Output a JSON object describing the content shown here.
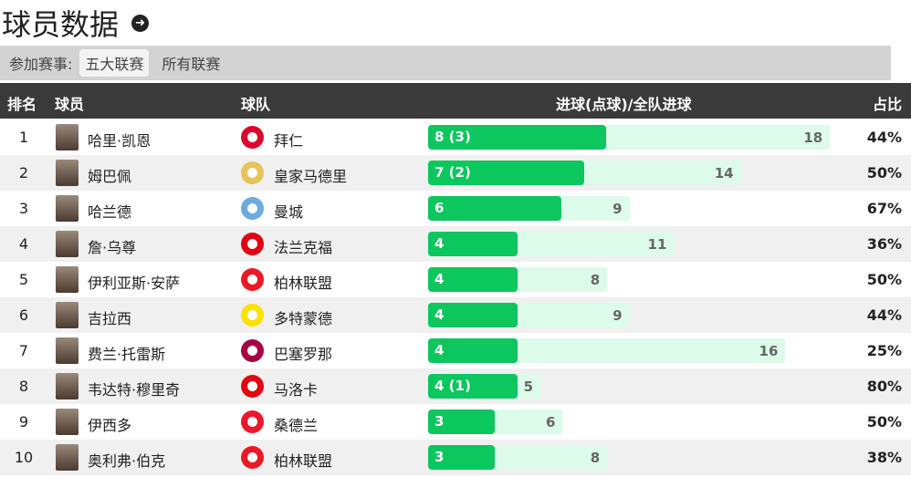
{
  "title": "球员数据",
  "filter": {
    "label": "参加赛事:",
    "options": [
      "五大联赛",
      "所有联赛"
    ],
    "active": "五大联赛"
  },
  "columns": {
    "rank": "排名",
    "player": "球员",
    "team": "球队",
    "goals": "进球(点球)/全队进球",
    "share": "占比"
  },
  "colors": {
    "bar": "#0cc65e",
    "bar_bg": "#dcfbea",
    "header": "#3a3a3a"
  },
  "rows": [
    {
      "rank": "1",
      "player": "哈里·凯恩",
      "team": "拜仁",
      "goals": 8,
      "goals_label": "8 (3)",
      "team_goals": 18,
      "share": "44%",
      "logo_color": "#dc052d"
    },
    {
      "rank": "2",
      "player": "姆巴佩",
      "team": "皇家马德里",
      "goals": 7,
      "goals_label": "7 (2)",
      "team_goals": 14,
      "share": "50%",
      "logo_color": "#e8c25a"
    },
    {
      "rank": "3",
      "player": "哈兰德",
      "team": "曼城",
      "goals": 6,
      "goals_label": "6",
      "team_goals": 9,
      "share": "67%",
      "logo_color": "#6cabdd"
    },
    {
      "rank": "4",
      "player": "詹·乌尊",
      "team": "法兰克福",
      "goals": 4,
      "goals_label": "4",
      "team_goals": 11,
      "share": "36%",
      "logo_color": "#e1000f"
    },
    {
      "rank": "5",
      "player": "伊利亚斯·安萨",
      "team": "柏林联盟",
      "goals": 4,
      "goals_label": "4",
      "team_goals": 8,
      "share": "50%",
      "logo_color": "#eb1923"
    },
    {
      "rank": "6",
      "player": "吉拉西",
      "team": "多特蒙德",
      "goals": 4,
      "goals_label": "4",
      "team_goals": 9,
      "share": "44%",
      "logo_color": "#fde100"
    },
    {
      "rank": "7",
      "player": "费兰·托雷斯",
      "team": "巴塞罗那",
      "goals": 4,
      "goals_label": "4",
      "team_goals": 16,
      "share": "25%",
      "logo_color": "#a50044"
    },
    {
      "rank": "8",
      "player": "韦达特·穆里奇",
      "team": "马洛卡",
      "goals": 4,
      "goals_label": "4 (1)",
      "team_goals": 5,
      "share": "80%",
      "logo_color": "#e20613"
    },
    {
      "rank": "9",
      "player": "伊西多",
      "team": "桑德兰",
      "goals": 3,
      "goals_label": "3",
      "team_goals": 6,
      "share": "50%",
      "logo_color": "#eb172b"
    },
    {
      "rank": "10",
      "player": "奥利弗·伯克",
      "team": "柏林联盟",
      "goals": 3,
      "goals_label": "3",
      "team_goals": 8,
      "share": "38%",
      "logo_color": "#eb1923"
    }
  ]
}
